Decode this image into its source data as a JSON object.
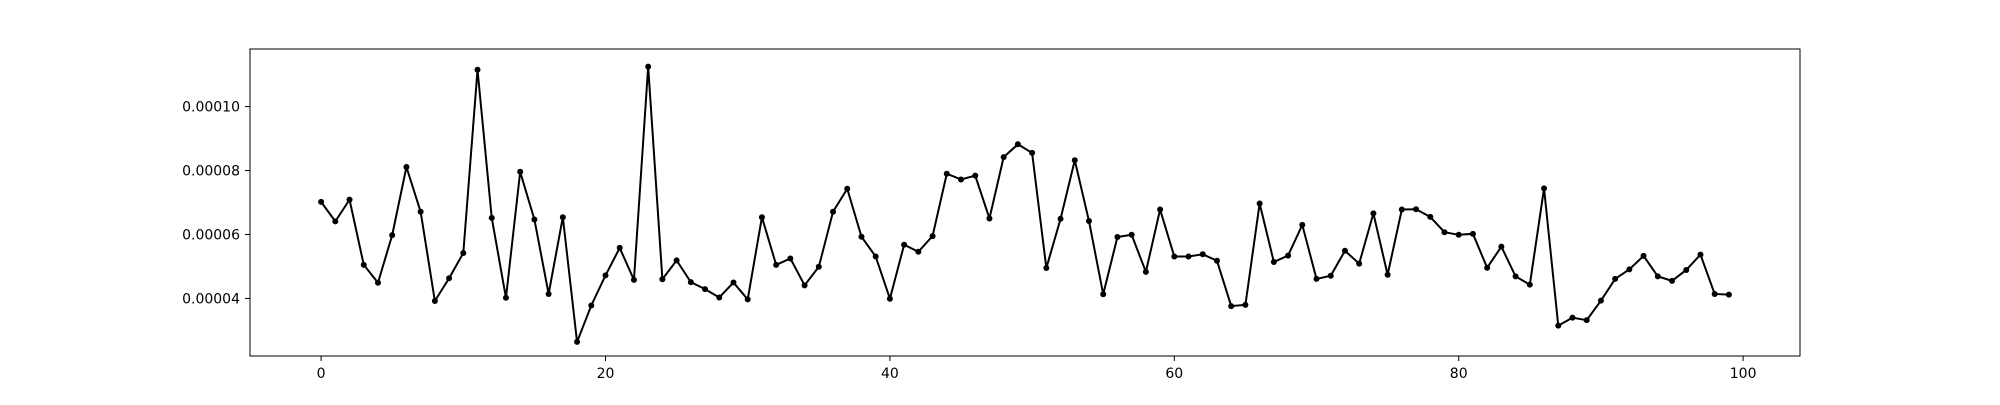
{
  "chart_data": {
    "type": "line",
    "title": "",
    "xlabel": "",
    "ylabel": "",
    "xlim": [
      -5,
      104
    ],
    "ylim": [
      2.2e-05,
      0.000118
    ],
    "grid": false,
    "legend": "none",
    "line_color": "#000000",
    "marker": "dot",
    "x_ticks": [
      0,
      20,
      40,
      60,
      80,
      100
    ],
    "x_tick_labels": [
      "0",
      "20",
      "40",
      "60",
      "80",
      "100"
    ],
    "y_ticks": [
      4e-05,
      6e-05,
      8e-05,
      0.0001
    ],
    "y_tick_labels": [
      "0.00004",
      "0.00006",
      "0.00008",
      "0.00010"
    ],
    "series": [
      {
        "x": [
          0,
          1,
          2,
          3,
          4,
          5,
          6,
          7,
          8,
          9,
          10,
          11,
          12,
          13,
          14,
          15,
          16,
          17,
          18,
          19,
          20,
          21,
          22,
          23,
          24,
          25,
          26,
          27,
          28,
          29,
          30,
          31,
          32,
          33,
          34,
          35,
          36,
          37,
          38,
          39,
          40,
          41,
          42,
          43,
          44,
          45,
          46,
          47,
          48,
          49,
          50,
          51,
          52,
          53,
          54,
          55,
          56,
          57,
          58,
          59,
          60,
          61,
          62,
          63,
          64,
          65,
          66,
          67,
          68,
          69,
          70,
          71,
          72,
          73,
          74,
          75,
          76,
          77,
          78,
          79,
          80,
          81,
          82,
          83,
          84,
          85,
          86,
          87,
          88,
          89,
          90,
          91,
          92,
          93,
          94,
          95,
          96,
          97,
          98,
          99
        ],
        "y": [
          7.02e-05,
          6.41e-05,
          7.09e-05,
          5.05e-05,
          4.49e-05,
          5.98e-05,
          8.11e-05,
          6.71e-05,
          3.92e-05,
          4.63e-05,
          5.42e-05,
          0.0001115,
          6.52e-05,
          4.02e-05,
          7.96e-05,
          6.47e-05,
          4.14e-05,
          6.54e-05,
          2.64e-05,
          3.78e-05,
          4.72e-05,
          5.58e-05,
          4.58e-05,
          0.0001125,
          4.6e-05,
          5.19e-05,
          4.51e-05,
          4.29e-05,
          4.03e-05,
          4.5e-05,
          3.97e-05,
          6.54e-05,
          5.05e-05,
          5.25e-05,
          4.41e-05,
          4.99e-05,
          6.71e-05,
          7.43e-05,
          5.93e-05,
          5.31e-05,
          3.99e-05,
          5.68e-05,
          5.46e-05,
          5.95e-05,
          7.9e-05,
          7.72e-05,
          7.84e-05,
          6.5e-05,
          8.42e-05,
          8.82e-05,
          8.55e-05,
          4.95e-05,
          6.49e-05,
          8.32e-05,
          6.42e-05,
          4.13e-05,
          5.92e-05,
          5.99e-05,
          4.83e-05,
          6.78e-05,
          5.31e-05,
          5.31e-05,
          5.38e-05,
          5.18e-05,
          3.76e-05,
          3.8e-05,
          6.97e-05,
          5.14e-05,
          5.34e-05,
          6.3e-05,
          4.61e-05,
          4.71e-05,
          5.49e-05,
          5.09e-05,
          6.66e-05,
          4.74e-05,
          6.78e-05,
          6.79e-05,
          6.55e-05,
          6.07e-05,
          5.99e-05,
          6.02e-05,
          4.96e-05,
          5.62e-05,
          4.69e-05,
          4.43e-05,
          7.44e-05,
          3.15e-05,
          3.4e-05,
          3.32e-05,
          3.93e-05,
          4.61e-05,
          4.91e-05,
          5.33e-05,
          4.69e-05,
          4.55e-05,
          4.89e-05,
          5.37e-05,
          4.14e-05,
          4.12e-05
        ]
      }
    ]
  }
}
